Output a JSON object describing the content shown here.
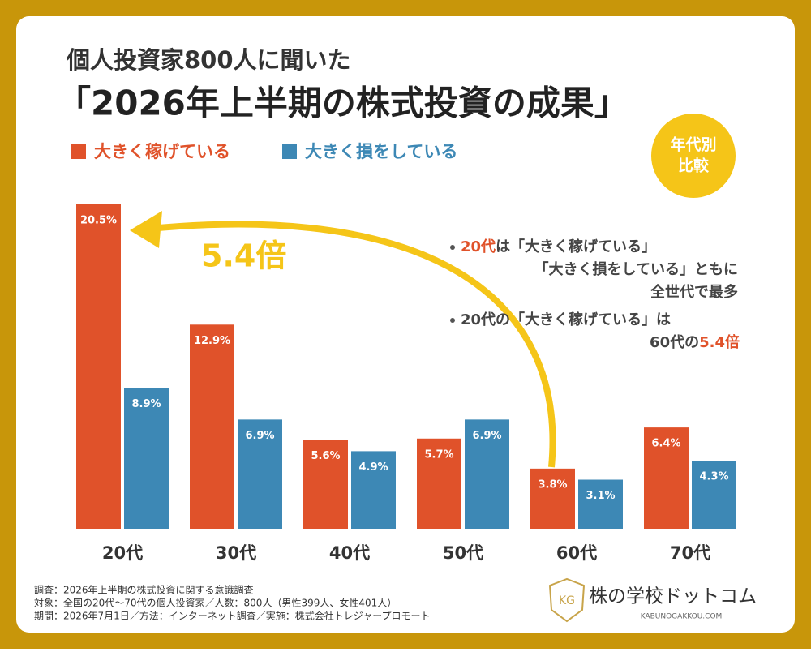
{
  "title_line1": "個人投資家800人に聞いた",
  "title_line2": "「2026年上半期の株式投資の成果」",
  "badge": [
    "年代別",
    "比較"
  ],
  "chart_data": {
    "type": "bar",
    "categories": [
      "20代",
      "30代",
      "40代",
      "50代",
      "60代",
      "70代"
    ],
    "series": [
      {
        "name": "大きく稼げている",
        "color": "#e0522a",
        "values": [
          20.5,
          12.9,
          5.6,
          5.7,
          3.8,
          6.4
        ],
        "value_labels": [
          "20.5%",
          "12.9%",
          "5.6%",
          "5.7%",
          "3.8%",
          "6.4%"
        ]
      },
      {
        "name": "大きく損をしている",
        "color": "#3d88b5",
        "values": [
          8.9,
          6.9,
          4.9,
          6.9,
          3.1,
          4.3
        ],
        "value_labels": [
          "8.9%",
          "6.9%",
          "4.9%",
          "6.9%",
          "3.1%",
          "4.3%"
        ]
      }
    ],
    "annotation": "5.4倍",
    "annotation_color": "#f5c518"
  },
  "notes": [
    [
      "20代",
      "は「大きく稼げている」",
      "「大きく損をしている」ともに",
      "全世代で最多"
    ],
    [
      "20代の「大きく稼げている」は",
      "60代の",
      "5.4倍"
    ]
  ],
  "footer": [
    "調査：2026年上半期の株式投資に関する意識調査",
    "対象：全国の20代〜70代の個人投資家／人数：800人（男性399人、女性401人）",
    "期間：2026年7月1日／方法：インターネット調査／実施：株式会社トレジャープロモート"
  ],
  "logo": {
    "badge": "KG",
    "name": "株の学校ドットコム",
    "url": "KABUNOGAKKOU.COM"
  }
}
